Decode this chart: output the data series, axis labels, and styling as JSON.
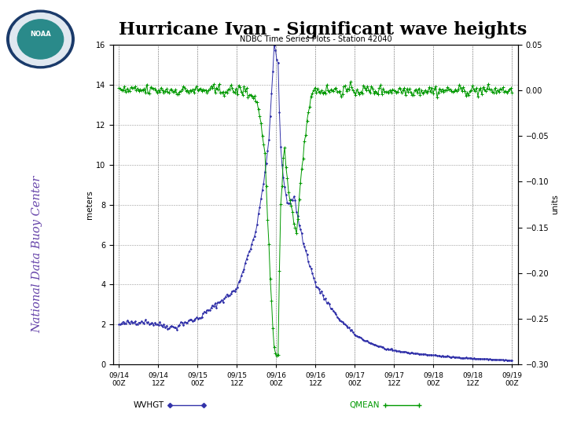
{
  "title": "Hurricane Ivan - Significant wave heights",
  "subtitle": "NDBC Time Series Plots - Station 42040",
  "ylabel_left": "meters",
  "ylabel_right": "units",
  "ylim_left": [
    0,
    16
  ],
  "ylim_right": [
    -0.3,
    0.05
  ],
  "yticks_left": [
    0,
    2,
    4,
    6,
    8,
    10,
    12,
    14,
    16
  ],
  "yticks_right": [
    -0.3,
    -0.25,
    -0.2,
    -0.15,
    -0.1,
    -0.05,
    0,
    0.05
  ],
  "xtick_labels": [
    "09/14\n00Z",
    "09/14\n12Z",
    "09/15\n00Z",
    "09/15\n12Z",
    "09/16\n00Z",
    "09/16\n12Z",
    "09/17\n00Z",
    "09/17\n12Z",
    "09/18\n00Z",
    "09/18\n12Z",
    "09/19\n00Z"
  ],
  "bg_color": "#ffffff",
  "plot_bg": "#ffffff",
  "blue_color": "#3333aa",
  "green_color": "#009900",
  "sidebar_bg": "#b8c8dc",
  "sidebar_text_color": "#6644aa",
  "title_color": "#000000",
  "legend_wvhgt": "WVHGT",
  "legend_qmean": "QMEAN"
}
